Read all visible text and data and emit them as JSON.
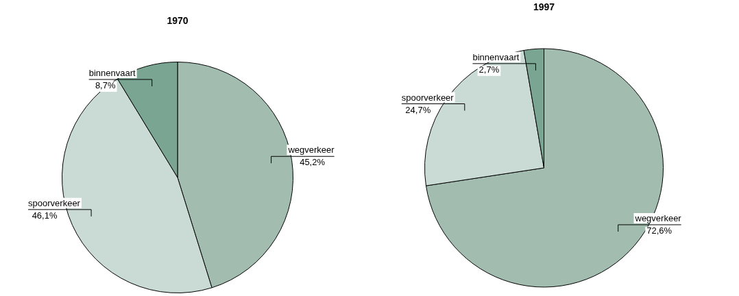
{
  "chart_data": [
    {
      "type": "pie",
      "title": "1970",
      "categories": [
        "wegverkeer",
        "spoorverkeer",
        "binnenvaart"
      ],
      "values": [
        45.2,
        46.1,
        8.7
      ],
      "colors": [
        "#a2bdb0",
        "#c9dbd4",
        "#7aa593"
      ],
      "value_labels": [
        "45,2%",
        "46,1%",
        "8,7%"
      ]
    },
    {
      "type": "pie",
      "title": "1997",
      "categories": [
        "wegverkeer",
        "spoorverkeer",
        "binnenvaart"
      ],
      "values": [
        72.6,
        24.7,
        2.7
      ],
      "colors": [
        "#a2bdb0",
        "#c9dbd4",
        "#7aa593"
      ],
      "value_labels": [
        "72,6%",
        "24,7%",
        "2,7%"
      ]
    }
  ]
}
